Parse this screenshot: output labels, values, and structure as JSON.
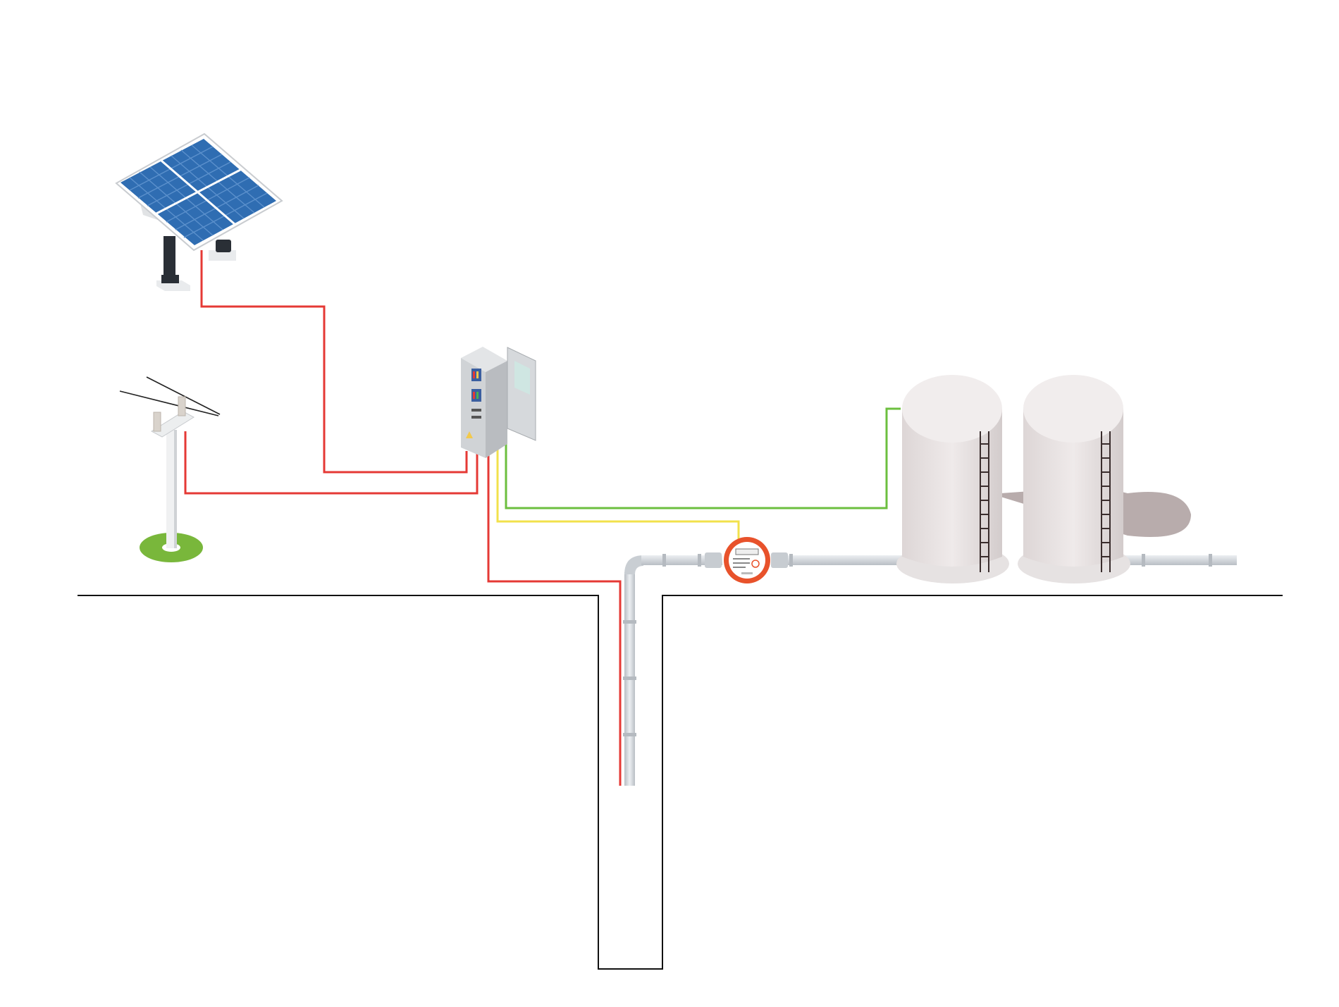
{
  "diagram": {
    "components": [
      {
        "id": "solar",
        "icon": "solar-panel-icon"
      },
      {
        "id": "pole",
        "icon": "power-pole-icon"
      },
      {
        "id": "controller",
        "icon": "control-cabinet-icon"
      },
      {
        "id": "meter",
        "icon": "water-meter-icon"
      },
      {
        "id": "tank1",
        "icon": "storage-tank-icon"
      },
      {
        "id": "tank2",
        "icon": "storage-tank-icon"
      },
      {
        "id": "well",
        "icon": "borehole-well-icon"
      }
    ],
    "connections": [
      {
        "from": "solar",
        "to": "controller",
        "color": "#e53935"
      },
      {
        "from": "pole",
        "to": "controller",
        "color": "#e53935"
      },
      {
        "from": "controller",
        "to": "well",
        "color": "#e53935"
      },
      {
        "from": "controller",
        "to": "meter",
        "color": "#f2e14c"
      },
      {
        "from": "controller",
        "to": "tank1",
        "color": "#6cbf3f"
      }
    ]
  },
  "colors": {
    "power_cable": "#e53935",
    "signal_cable_meter": "#f2e14c",
    "signal_cable_tank": "#6cbf3f",
    "panel_cell": "#2f6db2",
    "pipe": "#cfd3d8",
    "meter_body": "#e8522b",
    "tank_body": "#e7e1e1",
    "ground_line": "#111111"
  }
}
